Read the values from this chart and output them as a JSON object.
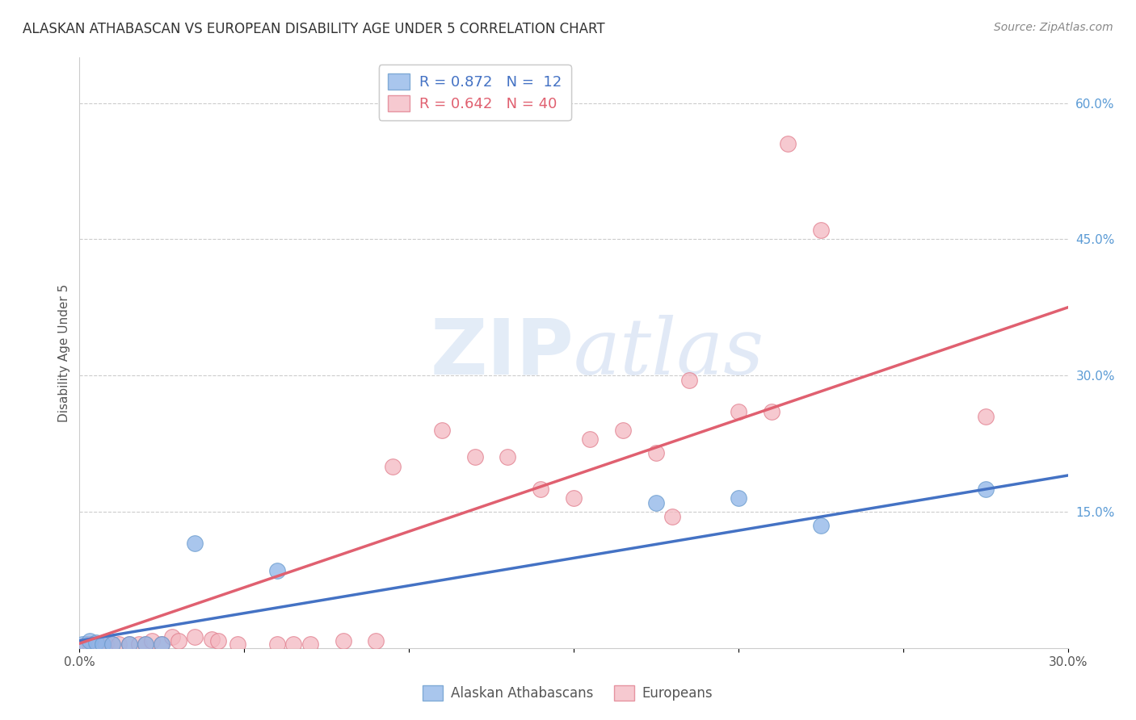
{
  "title": "ALASKAN ATHABASCAN VS EUROPEAN DISABILITY AGE UNDER 5 CORRELATION CHART",
  "source": "Source: ZipAtlas.com",
  "ylabel": "Disability Age Under 5",
  "xlim": [
    0.0,
    0.3
  ],
  "ylim": [
    0.0,
    0.65
  ],
  "y_ticks_right": [
    0.15,
    0.3,
    0.45,
    0.6
  ],
  "y_tick_labels_right": [
    "15.0%",
    "30.0%",
    "45.0%",
    "60.0%"
  ],
  "blue_color": "#8DB4E8",
  "blue_edge_color": "#6699CC",
  "pink_color": "#F4B8C1",
  "pink_edge_color": "#E07A8A",
  "blue_line_color": "#4472C4",
  "pink_line_color": "#E06070",
  "blue_scatter": [
    [
      0.001,
      0.004
    ],
    [
      0.003,
      0.008
    ],
    [
      0.005,
      0.006
    ],
    [
      0.007,
      0.004
    ],
    [
      0.01,
      0.004
    ],
    [
      0.015,
      0.004
    ],
    [
      0.02,
      0.004
    ],
    [
      0.025,
      0.004
    ],
    [
      0.035,
      0.115
    ],
    [
      0.06,
      0.085
    ],
    [
      0.175,
      0.16
    ],
    [
      0.2,
      0.165
    ],
    [
      0.225,
      0.135
    ],
    [
      0.275,
      0.175
    ]
  ],
  "pink_scatter": [
    [
      0.002,
      0.004
    ],
    [
      0.003,
      0.004
    ],
    [
      0.004,
      0.004
    ],
    [
      0.005,
      0.004
    ],
    [
      0.006,
      0.004
    ],
    [
      0.008,
      0.004
    ],
    [
      0.01,
      0.004
    ],
    [
      0.012,
      0.004
    ],
    [
      0.015,
      0.004
    ],
    [
      0.018,
      0.004
    ],
    [
      0.02,
      0.004
    ],
    [
      0.022,
      0.008
    ],
    [
      0.025,
      0.004
    ],
    [
      0.028,
      0.012
    ],
    [
      0.03,
      0.008
    ],
    [
      0.035,
      0.012
    ],
    [
      0.04,
      0.01
    ],
    [
      0.042,
      0.008
    ],
    [
      0.048,
      0.004
    ],
    [
      0.06,
      0.004
    ],
    [
      0.065,
      0.004
    ],
    [
      0.07,
      0.004
    ],
    [
      0.08,
      0.008
    ],
    [
      0.09,
      0.008
    ],
    [
      0.095,
      0.2
    ],
    [
      0.11,
      0.24
    ],
    [
      0.12,
      0.21
    ],
    [
      0.13,
      0.21
    ],
    [
      0.14,
      0.175
    ],
    [
      0.15,
      0.165
    ],
    [
      0.155,
      0.23
    ],
    [
      0.165,
      0.24
    ],
    [
      0.175,
      0.215
    ],
    [
      0.18,
      0.145
    ],
    [
      0.185,
      0.295
    ],
    [
      0.2,
      0.26
    ],
    [
      0.21,
      0.26
    ],
    [
      0.215,
      0.555
    ],
    [
      0.225,
      0.46
    ],
    [
      0.275,
      0.255
    ]
  ],
  "blue_line_x": [
    0.0,
    0.3
  ],
  "blue_line_y": [
    0.008,
    0.19
  ],
  "pink_line_x": [
    0.0,
    0.3
  ],
  "pink_line_y": [
    0.005,
    0.375
  ],
  "background_color": "#FFFFFF",
  "grid_color": "#CCCCCC",
  "title_color": "#333333",
  "right_axis_color": "#5B9BD5",
  "source_color": "#888888"
}
